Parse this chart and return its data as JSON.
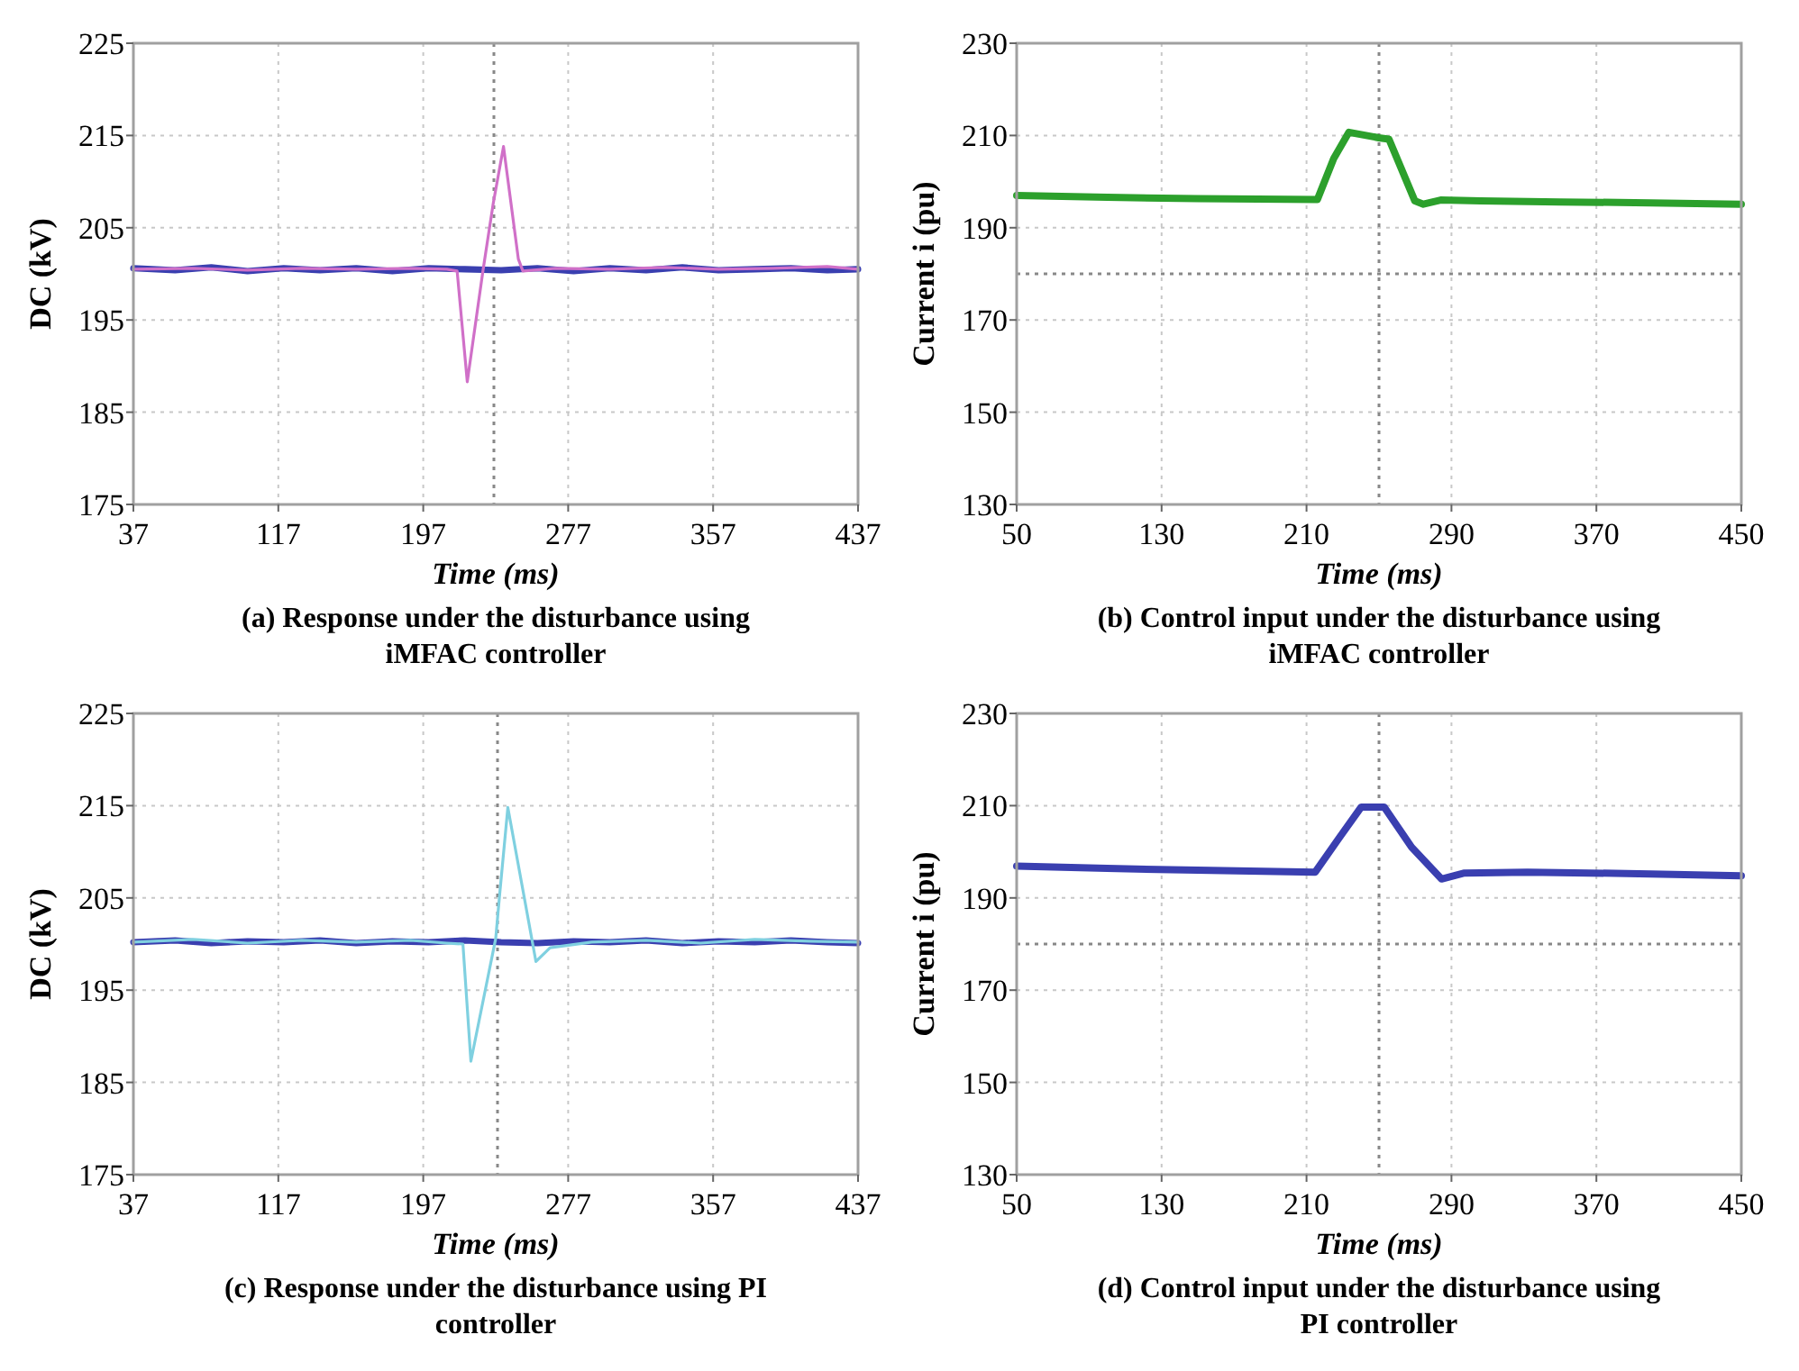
{
  "chart_data": [
    {
      "type": "line",
      "title": "(a) Response under the disturbance using iMFAC controller",
      "xlabel": "Time  (ms)",
      "ylabel": "DC (kV)",
      "xlim": [
        37,
        437
      ],
      "xticks": [
        37,
        117,
        197,
        277,
        357,
        437
      ],
      "ylim": [
        175,
        225
      ],
      "yticks": [
        175,
        185,
        195,
        205,
        215,
        225
      ],
      "grid": true,
      "ref_lines": [
        {
          "axis": "x",
          "value": 236,
          "color": "#888888",
          "line_style": "dotted"
        }
      ],
      "series": [
        {
          "color": "#3a3fb0",
          "x": [
            37,
            60,
            80,
            100,
            120,
            140,
            160,
            180,
            200,
            220,
            240,
            260,
            280,
            300,
            320,
            340,
            360,
            380,
            400,
            420,
            437
          ],
          "values": [
            200.6,
            200.4,
            200.7,
            200.3,
            200.6,
            200.4,
            200.6,
            200.3,
            200.6,
            200.5,
            200.4,
            200.6,
            200.3,
            200.6,
            200.4,
            200.7,
            200.4,
            200.5,
            200.6,
            200.4,
            200.5
          ]
        },
        {
          "color": "#d070c8",
          "x": [
            37,
            70,
            100,
            130,
            160,
            190,
            210,
            215.7,
            221.3,
            230,
            235.6,
            241.3,
            249.5,
            252,
            270,
            300,
            330,
            360,
            390,
            420,
            437
          ],
          "values": [
            200.5,
            200.6,
            200.4,
            200.6,
            200.5,
            200.6,
            200.5,
            200.3,
            188.3,
            200.4,
            207.6,
            213.8,
            201.6,
            200.3,
            200.6,
            200.5,
            200.7,
            200.5,
            200.6,
            200.8,
            200.5
          ]
        }
      ]
    },
    {
      "type": "line",
      "title": "(b) Control input under the disturbance using iMFAC controller",
      "xlabel": "Time  (ms)",
      "ylabel": "Current i (pu)",
      "xlim": [
        50,
        450
      ],
      "xticks": [
        50,
        130,
        210,
        290,
        370,
        450
      ],
      "ylim": [
        130,
        230
      ],
      "yticks": [
        130,
        150,
        170,
        190,
        210,
        230
      ],
      "grid": true,
      "ref_lines": [
        {
          "axis": "x",
          "value": 250,
          "color": "#888888",
          "line_style": "dotted"
        },
        {
          "axis": "y",
          "value": 180,
          "color": "#888888",
          "line_style": "dotted"
        }
      ],
      "series": [
        {
          "color": "#2ca02c",
          "x": [
            50,
            100,
            150,
            216,
            225,
            233.4,
            249.8,
            255.5,
            269.8,
            274.5,
            284,
            306,
            350,
            400,
            450
          ],
          "values": [
            197,
            196.6,
            196.3,
            196.1,
            205,
            210.7,
            209.5,
            209.2,
            195.8,
            195.1,
            196,
            195.8,
            195.6,
            195.4,
            195.1
          ]
        }
      ]
    },
    {
      "type": "line",
      "title": "(c) Response under the disturbance using PI controller",
      "xlabel": "Time  (ms)",
      "ylabel": "DC (kV)",
      "xlim": [
        37,
        437
      ],
      "xticks": [
        37,
        117,
        197,
        277,
        357,
        437
      ],
      "ylim": [
        175,
        225
      ],
      "yticks": [
        175,
        185,
        195,
        205,
        215,
        225
      ],
      "grid": true,
      "ref_lines": [
        {
          "axis": "x",
          "value": 238,
          "color": "#888888",
          "line_style": "dotted"
        }
      ],
      "series": [
        {
          "color": "#3a3fb0",
          "x": [
            37,
            60,
            80,
            100,
            120,
            140,
            160,
            180,
            200,
            220,
            240,
            260,
            280,
            300,
            320,
            340,
            360,
            380,
            400,
            420,
            437
          ],
          "values": [
            200.2,
            200.4,
            200.1,
            200.3,
            200.2,
            200.4,
            200.1,
            200.3,
            200.2,
            200.4,
            200.2,
            200.1,
            200.3,
            200.2,
            200.4,
            200.1,
            200.3,
            200.2,
            200.4,
            200.2,
            200.1
          ]
        },
        {
          "color": "#7fd0e0",
          "x": [
            37,
            70,
            100,
            130,
            160,
            190,
            210,
            218.9,
            223.3,
            237,
            239,
            243.7,
            259.2,
            267,
            290,
            320,
            350,
            380,
            410,
            437
          ],
          "values": [
            200.2,
            200.5,
            200.1,
            200.4,
            200.2,
            200.4,
            200.1,
            200,
            187.3,
            200.6,
            205,
            214.8,
            198.1,
            199.6,
            200.2,
            200.4,
            200.1,
            200.5,
            200.3,
            200.2
          ]
        }
      ]
    },
    {
      "type": "line",
      "title": "(d) Control input under the disturbance using PI controller",
      "xlabel": "Time  (ms)",
      "ylabel": "Current i (pu)",
      "xlim": [
        50,
        450
      ],
      "xticks": [
        50,
        130,
        210,
        290,
        370,
        450
      ],
      "ylim": [
        130,
        230
      ],
      "yticks": [
        130,
        150,
        170,
        190,
        210,
        230
      ],
      "grid": true,
      "ref_lines": [
        {
          "axis": "x",
          "value": 250,
          "color": "#888888",
          "line_style": "dotted"
        },
        {
          "axis": "y",
          "value": 180,
          "color": "#888888",
          "line_style": "dotted"
        }
      ],
      "series": [
        {
          "color": "#3a3fb0",
          "x": [
            50,
            100,
            150,
            214.8,
            228,
            240.2,
            252.9,
            268,
            284.5,
            297.2,
            332,
            400,
            450
          ],
          "values": [
            196.9,
            196.4,
            196,
            195.6,
            203,
            209.7,
            209.7,
            201,
            194.1,
            195.4,
            195.6,
            195.2,
            194.8
          ]
        }
      ]
    }
  ]
}
